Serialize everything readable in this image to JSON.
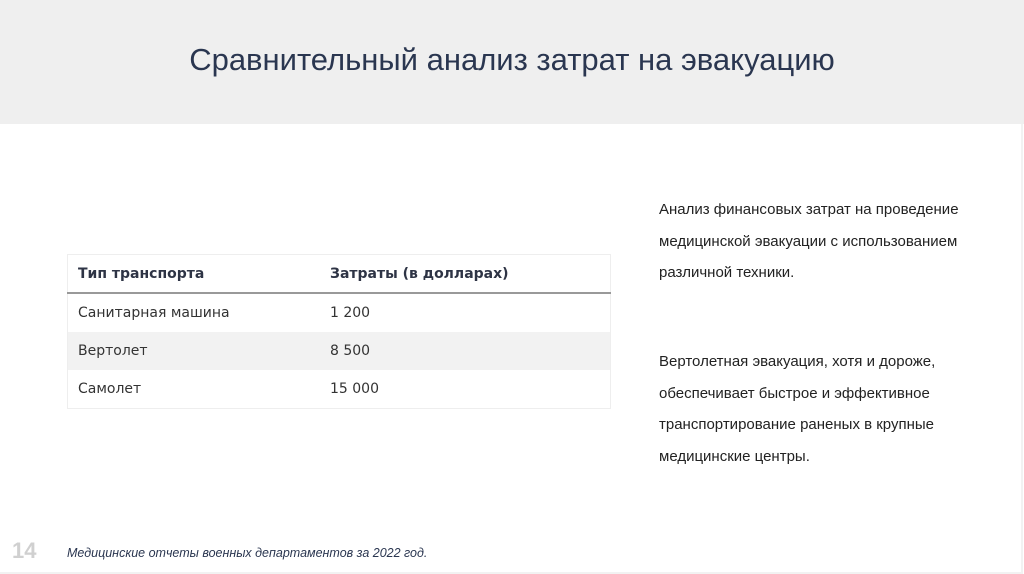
{
  "slide": {
    "title": "Сравнительный анализ затрат на эвакуацию",
    "page_number": "14",
    "source": "Медицинские отчеты военных департаментов за 2022 год."
  },
  "table": {
    "headers": [
      "Тип транспорта",
      "Затраты (в долларах)"
    ],
    "rows": [
      [
        "Санитарная машина",
        "1 200"
      ],
      [
        "Вертолет",
        "8 500"
      ],
      [
        "Самолет",
        "15 000"
      ]
    ]
  },
  "side_text": {
    "paragraph_1": "Анализ финансовых затрат на проведение медицинской эвакуации с использованием различной техники.",
    "paragraph_2": "Вертолетная эвакуация, хотя и дороже, обеспечивает быстрое и эффективное транспортирование раненых в крупные медицинские центры."
  }
}
